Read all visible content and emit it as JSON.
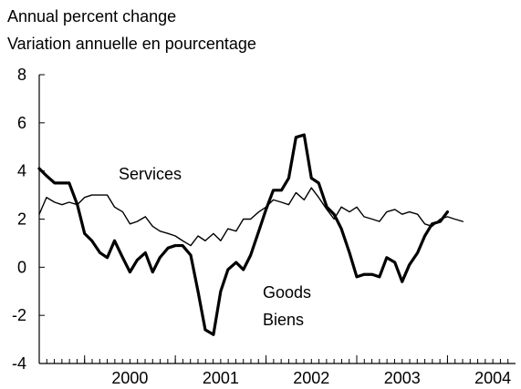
{
  "chart_data": {
    "type": "line",
    "title_lines": [
      "Annual percent change",
      "Variation annuelle en pourcentage"
    ],
    "xlabel": "",
    "ylabel": "",
    "y_ticks": [
      8,
      6,
      4,
      2,
      0,
      -2,
      -4
    ],
    "y_tick_labels": [
      "8",
      "6",
      "4",
      "2",
      "0",
      "-2",
      "-4"
    ],
    "ylim": [
      -4,
      8
    ],
    "x_tick_labels": [
      "2000",
      "2001",
      "2002",
      "2003",
      "2004"
    ],
    "x_range_years": [
      1999.5,
      2004.75
    ],
    "grid": false,
    "series": [
      {
        "name": "Services",
        "labels": [
          "Services"
        ],
        "stroke_color": "#000000",
        "line_weight": "thin",
        "points": [
          [
            1999.5,
            2.2
          ],
          [
            1999.58,
            2.9
          ],
          [
            1999.67,
            2.7
          ],
          [
            1999.75,
            2.6
          ],
          [
            1999.83,
            2.7
          ],
          [
            1999.92,
            2.6
          ],
          [
            2000.0,
            2.9
          ],
          [
            2000.08,
            3.0
          ],
          [
            2000.17,
            3.0
          ],
          [
            2000.25,
            3.0
          ],
          [
            2000.33,
            2.5
          ],
          [
            2000.42,
            2.3
          ],
          [
            2000.5,
            1.8
          ],
          [
            2000.58,
            1.9
          ],
          [
            2000.67,
            2.1
          ],
          [
            2000.75,
            1.7
          ],
          [
            2000.83,
            1.5
          ],
          [
            2000.92,
            1.4
          ],
          [
            2001.0,
            1.3
          ],
          [
            2001.08,
            1.1
          ],
          [
            2001.17,
            0.9
          ],
          [
            2001.25,
            1.3
          ],
          [
            2001.33,
            1.1
          ],
          [
            2001.42,
            1.4
          ],
          [
            2001.5,
            1.1
          ],
          [
            2001.58,
            1.6
          ],
          [
            2001.67,
            1.5
          ],
          [
            2001.75,
            2.0
          ],
          [
            2001.83,
            2.0
          ],
          [
            2001.92,
            2.3
          ],
          [
            2002.0,
            2.5
          ],
          [
            2002.08,
            2.8
          ],
          [
            2002.17,
            2.7
          ],
          [
            2002.25,
            2.6
          ],
          [
            2002.33,
            3.1
          ],
          [
            2002.42,
            2.8
          ],
          [
            2002.5,
            3.3
          ],
          [
            2002.58,
            2.9
          ],
          [
            2002.67,
            2.4
          ],
          [
            2002.75,
            2.0
          ],
          [
            2002.83,
            2.5
          ],
          [
            2002.92,
            2.3
          ],
          [
            2003.0,
            2.5
          ],
          [
            2003.08,
            2.1
          ],
          [
            2003.17,
            2.0
          ],
          [
            2003.25,
            1.9
          ],
          [
            2003.33,
            2.3
          ],
          [
            2003.42,
            2.4
          ],
          [
            2003.5,
            2.2
          ],
          [
            2003.58,
            2.3
          ],
          [
            2003.67,
            2.2
          ],
          [
            2003.75,
            1.8
          ],
          [
            2003.83,
            1.7
          ],
          [
            2003.92,
            2.0
          ],
          [
            2004.0,
            2.1
          ],
          [
            2004.08,
            2.0
          ],
          [
            2004.17,
            1.9
          ]
        ]
      },
      {
        "name": "Goods / Biens",
        "labels": [
          "Goods",
          "Biens"
        ],
        "stroke_color": "#000000",
        "line_weight": "thick",
        "points": [
          [
            1999.5,
            4.1
          ],
          [
            1999.58,
            3.8
          ],
          [
            1999.67,
            3.5
          ],
          [
            1999.75,
            3.5
          ],
          [
            1999.83,
            3.5
          ],
          [
            1999.92,
            2.6
          ],
          [
            2000.0,
            1.4
          ],
          [
            2000.08,
            1.1
          ],
          [
            2000.17,
            0.6
          ],
          [
            2000.25,
            0.4
          ],
          [
            2000.33,
            1.1
          ],
          [
            2000.42,
            0.4
          ],
          [
            2000.5,
            -0.2
          ],
          [
            2000.58,
            0.3
          ],
          [
            2000.67,
            0.6
          ],
          [
            2000.75,
            -0.2
          ],
          [
            2000.83,
            0.4
          ],
          [
            2000.92,
            0.8
          ],
          [
            2001.0,
            0.9
          ],
          [
            2001.08,
            0.9
          ],
          [
            2001.17,
            0.5
          ],
          [
            2001.25,
            -1.0
          ],
          [
            2001.33,
            -2.6
          ],
          [
            2001.42,
            -2.8
          ],
          [
            2001.5,
            -1.0
          ],
          [
            2001.58,
            -0.1
          ],
          [
            2001.67,
            0.2
          ],
          [
            2001.75,
            -0.1
          ],
          [
            2001.83,
            0.5
          ],
          [
            2001.92,
            1.5
          ],
          [
            2002.0,
            2.4
          ],
          [
            2002.08,
            3.2
          ],
          [
            2002.17,
            3.2
          ],
          [
            2002.25,
            3.7
          ],
          [
            2002.33,
            5.4
          ],
          [
            2002.42,
            5.5
          ],
          [
            2002.5,
            3.7
          ],
          [
            2002.58,
            3.5
          ],
          [
            2002.67,
            2.5
          ],
          [
            2002.75,
            2.2
          ],
          [
            2002.83,
            1.6
          ],
          [
            2002.92,
            0.6
          ],
          [
            2003.0,
            -0.4
          ],
          [
            2003.08,
            -0.3
          ],
          [
            2003.17,
            -0.3
          ],
          [
            2003.25,
            -0.4
          ],
          [
            2003.33,
            0.4
          ],
          [
            2003.42,
            0.2
          ],
          [
            2003.5,
            -0.6
          ],
          [
            2003.58,
            0.1
          ],
          [
            2003.67,
            0.6
          ],
          [
            2003.75,
            1.3
          ],
          [
            2003.83,
            1.8
          ],
          [
            2003.92,
            1.9
          ],
          [
            2004.0,
            2.3
          ]
        ]
      }
    ]
  }
}
